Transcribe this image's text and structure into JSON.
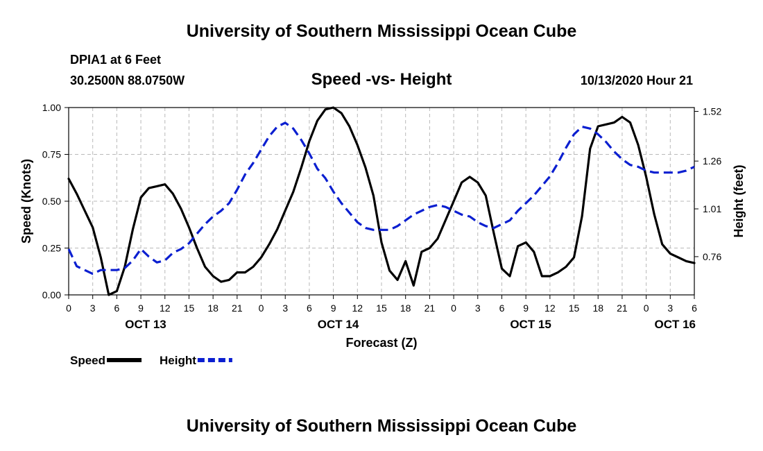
{
  "page": {
    "title_top": "University of Southern Mississippi Ocean Cube",
    "title_bottom": "University of Southern Mississippi Ocean Cube",
    "station": "DPIA1 at 6 Feet",
    "coords": "30.2500N 88.0750W",
    "subtitle": "Speed -vs- Height",
    "datetime": "10/13/2020 Hour 21"
  },
  "chart_data": {
    "type": "line",
    "title": "Speed -vs- Height",
    "xlabel": "Forecast (Z)",
    "ylabel_left": "Speed (Knots)",
    "ylabel_right": "Height (feet)",
    "x_range": [
      0,
      78
    ],
    "y_left_range": [
      0,
      1.0
    ],
    "y_right_range": [
      0.56,
      1.54
    ],
    "left_ticks": [
      {
        "v": 0,
        "label": "0.00"
      },
      {
        "v": 0.25,
        "label": "0.25"
      },
      {
        "v": 0.5,
        "label": "0.50"
      },
      {
        "v": 0.75,
        "label": "0.75"
      },
      {
        "v": 1.0,
        "label": "1.00"
      }
    ],
    "right_ticks": [
      {
        "v": 0.76,
        "label": "0.76"
      },
      {
        "v": 1.01,
        "label": "1.01"
      },
      {
        "v": 1.26,
        "label": "1.26"
      },
      {
        "v": 1.52,
        "label": "1.52"
      }
    ],
    "x_ticks": [
      {
        "x": 0,
        "label": "0"
      },
      {
        "x": 3,
        "label": "3"
      },
      {
        "x": 6,
        "label": "6"
      },
      {
        "x": 9,
        "label": "9"
      },
      {
        "x": 12,
        "label": "12"
      },
      {
        "x": 15,
        "label": "15"
      },
      {
        "x": 18,
        "label": "18"
      },
      {
        "x": 21,
        "label": "21"
      },
      {
        "x": 24,
        "label": "0"
      },
      {
        "x": 27,
        "label": "3"
      },
      {
        "x": 30,
        "label": "6"
      },
      {
        "x": 33,
        "label": "9"
      },
      {
        "x": 36,
        "label": "12"
      },
      {
        "x": 39,
        "label": "15"
      },
      {
        "x": 42,
        "label": "18"
      },
      {
        "x": 45,
        "label": "21"
      },
      {
        "x": 48,
        "label": "0"
      },
      {
        "x": 51,
        "label": "3"
      },
      {
        "x": 54,
        "label": "6"
      },
      {
        "x": 57,
        "label": "9"
      },
      {
        "x": 60,
        "label": "12"
      },
      {
        "x": 63,
        "label": "15"
      },
      {
        "x": 66,
        "label": "18"
      },
      {
        "x": 69,
        "label": "21"
      },
      {
        "x": 72,
        "label": "0"
      },
      {
        "x": 75,
        "label": "3"
      },
      {
        "x": 78,
        "label": "6"
      }
    ],
    "date_labels": [
      {
        "x": 9.6,
        "label": "OCT 13"
      },
      {
        "x": 33.6,
        "label": "OCT 14"
      },
      {
        "x": 57.6,
        "label": "OCT 15"
      },
      {
        "x": 75.6,
        "label": "OCT 16"
      }
    ],
    "grid": true,
    "legend_position": "bottom-left",
    "series": [
      {
        "name": "Speed",
        "axis": "left",
        "color": "#000000",
        "dash": "solid",
        "x": [
          0,
          1,
          2,
          3,
          4,
          5,
          6,
          7,
          8,
          9,
          10,
          11,
          12,
          13,
          14,
          15,
          16,
          17,
          18,
          19,
          20,
          21,
          22,
          23,
          24,
          25,
          26,
          27,
          28,
          29,
          30,
          31,
          32,
          33,
          34,
          35,
          36,
          37,
          38,
          39,
          40,
          41,
          42,
          43,
          44,
          45,
          46,
          47,
          48,
          49,
          50,
          51,
          52,
          53,
          54,
          55,
          56,
          57,
          58,
          59,
          60,
          61,
          62,
          63,
          64,
          65,
          66,
          67,
          68,
          69,
          70,
          71,
          72,
          73,
          74,
          75,
          76,
          77,
          78
        ],
        "values": [
          0.62,
          0.54,
          0.45,
          0.36,
          0.2,
          0.0,
          0.02,
          0.15,
          0.35,
          0.52,
          0.57,
          0.58,
          0.59,
          0.54,
          0.46,
          0.36,
          0.25,
          0.15,
          0.1,
          0.07,
          0.08,
          0.12,
          0.12,
          0.15,
          0.2,
          0.27,
          0.35,
          0.45,
          0.55,
          0.68,
          0.82,
          0.93,
          0.99,
          1.0,
          0.97,
          0.9,
          0.8,
          0.68,
          0.53,
          0.28,
          0.13,
          0.08,
          0.18,
          0.05,
          0.23,
          0.25,
          0.3,
          0.4,
          0.5,
          0.6,
          0.63,
          0.6,
          0.53,
          0.33,
          0.14,
          0.1,
          0.26,
          0.28,
          0.23,
          0.1,
          0.1,
          0.12,
          0.15,
          0.2,
          0.42,
          0.78,
          0.9,
          0.91,
          0.92,
          0.95,
          0.92,
          0.8,
          0.63,
          0.43,
          0.27,
          0.22,
          0.2,
          0.18,
          0.17
        ]
      },
      {
        "name": "Height",
        "axis": "right",
        "color": "#0b1fd0",
        "dash": "dashed",
        "x": [
          0,
          1,
          2,
          3,
          4,
          5,
          6,
          7,
          8,
          9,
          10,
          11,
          12,
          13,
          14,
          15,
          16,
          17,
          18,
          19,
          20,
          21,
          22,
          23,
          24,
          25,
          26,
          27,
          28,
          29,
          30,
          31,
          32,
          33,
          34,
          35,
          36,
          37,
          38,
          39,
          40,
          41,
          42,
          43,
          44,
          45,
          46,
          47,
          48,
          49,
          50,
          51,
          52,
          53,
          54,
          55,
          56,
          57,
          58,
          59,
          60,
          61,
          62,
          63,
          64,
          65,
          66,
          67,
          68,
          69,
          70,
          71,
          72,
          73,
          74,
          75,
          76,
          77,
          78
        ],
        "values": [
          0.8,
          0.71,
          0.69,
          0.67,
          0.69,
          0.69,
          0.69,
          0.7,
          0.74,
          0.8,
          0.76,
          0.73,
          0.74,
          0.78,
          0.8,
          0.83,
          0.88,
          0.93,
          0.97,
          1.0,
          1.04,
          1.11,
          1.19,
          1.25,
          1.32,
          1.39,
          1.44,
          1.46,
          1.43,
          1.37,
          1.3,
          1.22,
          1.17,
          1.1,
          1.04,
          0.99,
          0.94,
          0.91,
          0.9,
          0.9,
          0.9,
          0.92,
          0.95,
          0.98,
          1.0,
          1.02,
          1.03,
          1.02,
          1.0,
          0.98,
          0.97,
          0.94,
          0.92,
          0.91,
          0.93,
          0.95,
          1.0,
          1.04,
          1.08,
          1.13,
          1.18,
          1.25,
          1.33,
          1.4,
          1.44,
          1.43,
          1.4,
          1.36,
          1.31,
          1.27,
          1.24,
          1.23,
          1.21,
          1.2,
          1.2,
          1.2,
          1.2,
          1.21,
          1.23
        ]
      }
    ]
  }
}
